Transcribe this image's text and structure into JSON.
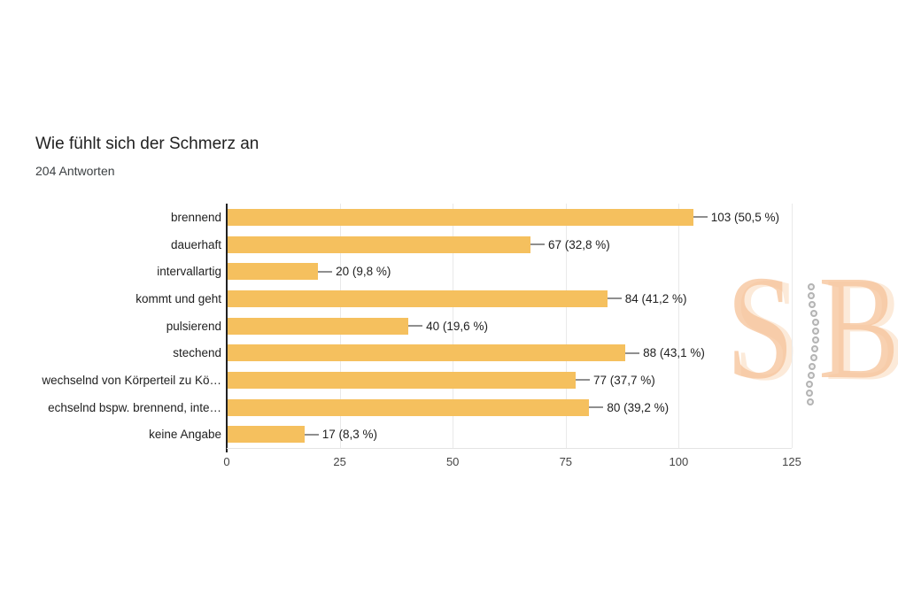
{
  "chart_data": {
    "type": "bar",
    "orientation": "horizontal",
    "title": "Wie fühlt sich der Schmerz an",
    "subtitle": "204 Antworten",
    "total_responses": 204,
    "categories": [
      "brennend",
      "dauerhaft",
      "intervallartig",
      "kommt und geht",
      "pulsierend",
      "stechend",
      "wechselnd von Körperteil zu Kö…",
      "echselnd bspw. brennend, inte…",
      "keine Angabe"
    ],
    "values": [
      103,
      67,
      20,
      84,
      40,
      88,
      77,
      80,
      17
    ],
    "value_labels": [
      "103 (50,5 %)",
      "67 (32,8 %)",
      "20 (9,8 %)",
      "84 (41,2 %)",
      "40 (19,6 %)",
      "88 (43,1 %)",
      "77 (37,7 %)",
      "80 (39,2 %)",
      "17 (8,3 %)"
    ],
    "xlim": [
      0,
      125
    ],
    "x_ticks": [
      0,
      25,
      50,
      75,
      100,
      125
    ],
    "grid": true,
    "legend": "none",
    "bar_color": "#F5C05E",
    "axis_color": "#212121",
    "gridline_color": "#E9E9E9"
  },
  "watermark": {
    "letter_s": "S",
    "letter_b": "B",
    "color": "#F6C69E"
  }
}
